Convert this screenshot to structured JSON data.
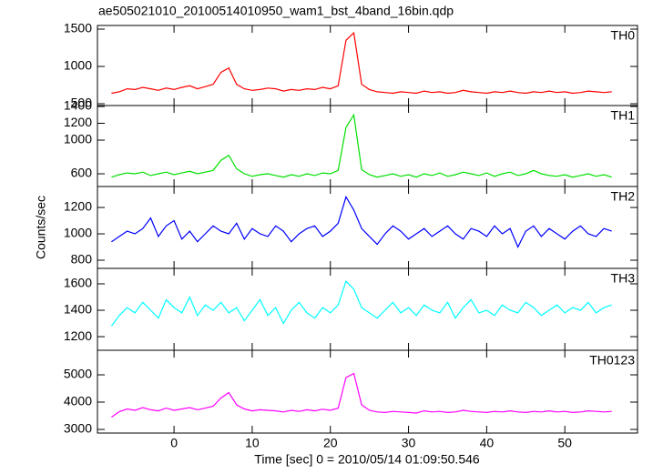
{
  "chart_data": [
    {
      "type": "line",
      "title": "ae505021010_20100514010950_wam1_bst_4band_16bin.qdp",
      "name": "TH0",
      "color": "#ff0000",
      "x": [
        -8,
        -7,
        -6,
        -5,
        -4,
        -3,
        -2,
        -1,
        0,
        1,
        2,
        3,
        4,
        5,
        6,
        7,
        8,
        9,
        10,
        11,
        12,
        13,
        14,
        15,
        16,
        17,
        18,
        19,
        20,
        21,
        22,
        23,
        24,
        25,
        26,
        27,
        28,
        29,
        30,
        31,
        32,
        33,
        34,
        35,
        36,
        37,
        38,
        39,
        40,
        41,
        42,
        43,
        44,
        45,
        46,
        47,
        48,
        49,
        50,
        51,
        52,
        53,
        54,
        55,
        56
      ],
      "values": [
        640,
        660,
        700,
        690,
        720,
        700,
        680,
        710,
        690,
        720,
        740,
        700,
        730,
        760,
        920,
        980,
        760,
        700,
        680,
        690,
        710,
        700,
        670,
        690,
        680,
        700,
        690,
        720,
        700,
        740,
        1350,
        1450,
        760,
        690,
        660,
        650,
        640,
        660,
        650,
        640,
        670,
        650,
        660,
        640,
        650,
        680,
        660,
        650,
        640,
        660,
        650,
        670,
        650,
        640,
        660,
        650,
        670,
        650,
        660,
        640,
        650,
        670,
        660,
        650,
        660
      ],
      "xlim": [
        -9.8,
        59.3
      ],
      "ylim": [
        476,
        1549
      ],
      "yticks": [
        500,
        1000,
        1500
      ]
    },
    {
      "type": "line",
      "name": "TH1",
      "color": "#00e000",
      "x": [
        -8,
        -7,
        -6,
        -5,
        -4,
        -3,
        -2,
        -1,
        0,
        1,
        2,
        3,
        4,
        5,
        6,
        7,
        8,
        9,
        10,
        11,
        12,
        13,
        14,
        15,
        16,
        17,
        18,
        19,
        20,
        21,
        22,
        23,
        24,
        25,
        26,
        27,
        28,
        29,
        30,
        31,
        32,
        33,
        34,
        35,
        36,
        37,
        38,
        39,
        40,
        41,
        42,
        43,
        44,
        45,
        46,
        47,
        48,
        49,
        50,
        51,
        52,
        53,
        54,
        55,
        56
      ],
      "values": [
        560,
        590,
        610,
        600,
        620,
        580,
        600,
        620,
        590,
        610,
        630,
        600,
        620,
        640,
        760,
        820,
        660,
        600,
        570,
        590,
        600,
        580,
        560,
        590,
        570,
        600,
        580,
        610,
        600,
        640,
        1150,
        1300,
        650,
        590,
        560,
        580,
        600,
        570,
        590,
        560,
        600,
        580,
        610,
        570,
        590,
        620,
        600,
        580,
        610,
        570,
        600,
        620,
        580,
        600,
        640,
        600,
        580,
        570,
        590,
        560,
        580,
        600,
        570,
        590,
        560
      ],
      "xlim": [
        -9.8,
        59.3
      ],
      "ylim": [
        449,
        1411
      ],
      "yticks": [
        600,
        1000,
        1200,
        1400
      ]
    },
    {
      "type": "line",
      "name": "TH2",
      "color": "#0000ff",
      "ylabel": "Counts/sec",
      "x": [
        -8,
        -7,
        -6,
        -5,
        -4,
        -3,
        -2,
        -1,
        0,
        1,
        2,
        3,
        4,
        5,
        6,
        7,
        8,
        9,
        10,
        11,
        12,
        13,
        14,
        15,
        16,
        17,
        18,
        19,
        20,
        21,
        22,
        23,
        24,
        25,
        26,
        27,
        28,
        29,
        30,
        31,
        32,
        33,
        34,
        35,
        36,
        37,
        38,
        39,
        40,
        41,
        42,
        43,
        44,
        45,
        46,
        47,
        48,
        49,
        50,
        51,
        52,
        53,
        54,
        55,
        56
      ],
      "values": [
        940,
        980,
        1020,
        1000,
        1040,
        1120,
        980,
        1060,
        1100,
        960,
        1020,
        940,
        1000,
        1060,
        1020,
        1000,
        1080,
        960,
        1040,
        1000,
        980,
        1060,
        1020,
        940,
        1000,
        1040,
        1060,
        980,
        1020,
        1080,
        1280,
        1180,
        1040,
        980,
        920,
        1000,
        1060,
        1020,
        960,
        1000,
        1040,
        980,
        1020,
        1060,
        1000,
        960,
        1040,
        1020,
        980,
        1060,
        1000,
        1040,
        900,
        1020,
        1060,
        980,
        1040,
        1000,
        960,
        1020,
        1060,
        1000,
        980,
        1040,
        1020
      ],
      "xlim": [
        -9.8,
        59.3
      ],
      "ylim": [
        738,
        1359
      ],
      "yticks": [
        800,
        1000,
        1200
      ]
    },
    {
      "type": "line",
      "name": "TH3",
      "color": "#00ffff",
      "x": [
        -8,
        -7,
        -6,
        -5,
        -4,
        -3,
        -2,
        -1,
        0,
        1,
        2,
        3,
        4,
        5,
        6,
        7,
        8,
        9,
        10,
        11,
        12,
        13,
        14,
        15,
        16,
        17,
        18,
        19,
        20,
        21,
        22,
        23,
        24,
        25,
        26,
        27,
        28,
        29,
        30,
        31,
        32,
        33,
        34,
        35,
        36,
        37,
        38,
        39,
        40,
        41,
        42,
        43,
        44,
        45,
        46,
        47,
        48,
        49,
        50,
        51,
        52,
        53,
        54,
        55,
        56
      ],
      "values": [
        1280,
        1360,
        1420,
        1380,
        1460,
        1400,
        1340,
        1480,
        1420,
        1380,
        1500,
        1360,
        1440,
        1400,
        1460,
        1380,
        1420,
        1320,
        1400,
        1480,
        1360,
        1420,
        1300,
        1400,
        1460,
        1380,
        1340,
        1420,
        1380,
        1440,
        1620,
        1560,
        1420,
        1380,
        1340,
        1400,
        1460,
        1380,
        1420,
        1360,
        1440,
        1400,
        1380,
        1460,
        1340,
        1420,
        1480,
        1380,
        1400,
        1360,
        1440,
        1400,
        1380,
        1460,
        1420,
        1360,
        1400,
        1440,
        1380,
        1420,
        1400,
        1460,
        1380,
        1420,
        1440
      ],
      "xlim": [
        -9.8,
        59.3
      ],
      "ylim": [
        1097,
        1717
      ],
      "yticks": [
        1200,
        1400,
        1600
      ]
    },
    {
      "type": "line",
      "name": "TH0123",
      "color": "#ff00ff",
      "xlabel": "Time [sec] 0 = 2010/05/14 01:09:50.546",
      "x": [
        -8,
        -7,
        -6,
        -5,
        -4,
        -3,
        -2,
        -1,
        0,
        1,
        2,
        3,
        4,
        5,
        6,
        7,
        8,
        9,
        10,
        11,
        12,
        13,
        14,
        15,
        16,
        17,
        18,
        19,
        20,
        21,
        22,
        23,
        24,
        25,
        26,
        27,
        28,
        29,
        30,
        31,
        32,
        33,
        34,
        35,
        36,
        37,
        38,
        39,
        40,
        41,
        42,
        43,
        44,
        45,
        46,
        47,
        48,
        49,
        50,
        51,
        52,
        53,
        54,
        55,
        56
      ],
      "values": [
        3450,
        3650,
        3750,
        3700,
        3800,
        3720,
        3680,
        3780,
        3700,
        3750,
        3800,
        3720,
        3780,
        3850,
        4150,
        4350,
        3900,
        3750,
        3680,
        3720,
        3700,
        3680,
        3640,
        3700,
        3660,
        3720,
        3680,
        3740,
        3700,
        3780,
        4900,
        5050,
        3900,
        3700,
        3640,
        3620,
        3660,
        3640,
        3620,
        3600,
        3680,
        3640,
        3660,
        3620,
        3640,
        3700,
        3660,
        3640,
        3620,
        3660,
        3640,
        3680,
        3640,
        3620,
        3660,
        3640,
        3680,
        3640,
        3660,
        3620,
        3640,
        3680,
        3660,
        3640,
        3660
      ],
      "xlim": [
        -9.8,
        59.3
      ],
      "ylim": [
        2867,
        5900
      ],
      "yticks": [
        3000,
        4000,
        5000
      ],
      "xticks": [
        0,
        10,
        20,
        30,
        40,
        50
      ]
    }
  ]
}
